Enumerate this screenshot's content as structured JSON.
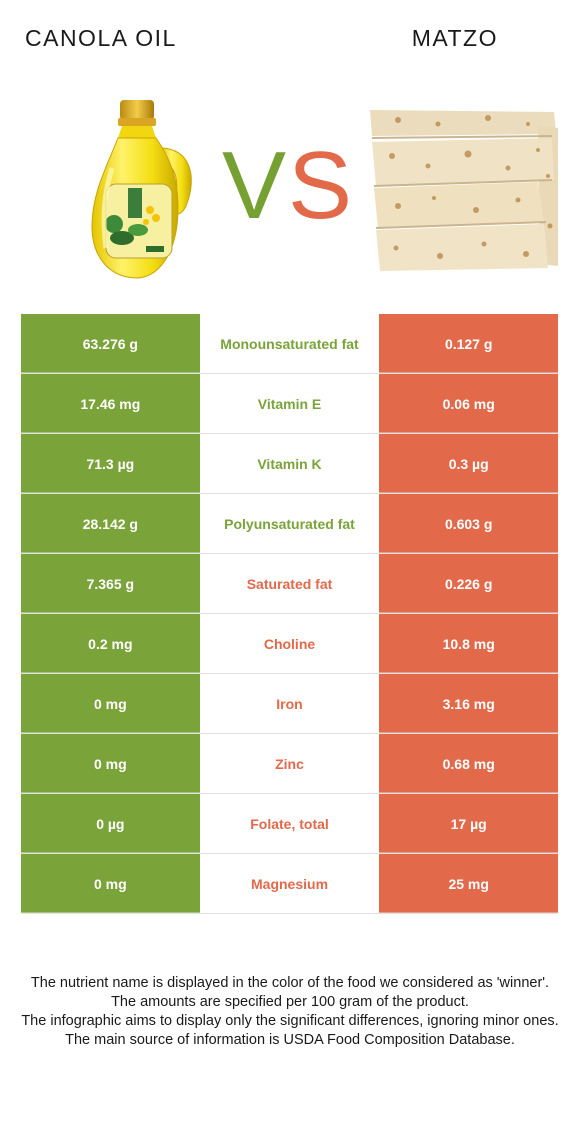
{
  "header": {
    "left_food": "CANOLA OIL",
    "right_food": "MATZO",
    "vs_v": "V",
    "vs_s": "S"
  },
  "colors": {
    "left_accent": "#7aa33a",
    "right_accent": "#e2694a"
  },
  "images": {
    "left": "canola-oil-bottle-image",
    "right": "matzo-crackers-image"
  },
  "rows": [
    {
      "left": "63.276 g",
      "nutrient": "Monounsaturated fat",
      "right": "0.127 g",
      "winner": "left"
    },
    {
      "left": "17.46 mg",
      "nutrient": "Vitamin E",
      "right": "0.06 mg",
      "winner": "left"
    },
    {
      "left": "71.3 µg",
      "nutrient": "Vitamin K",
      "right": "0.3 µg",
      "winner": "left"
    },
    {
      "left": "28.142 g",
      "nutrient": "Polyunsaturated fat",
      "right": "0.603 g",
      "winner": "left"
    },
    {
      "left": "7.365 g",
      "nutrient": "Saturated fat",
      "right": "0.226 g",
      "winner": "right"
    },
    {
      "left": "0.2 mg",
      "nutrient": "Choline",
      "right": "10.8 mg",
      "winner": "right"
    },
    {
      "left": "0 mg",
      "nutrient": "Iron",
      "right": "3.16 mg",
      "winner": "right"
    },
    {
      "left": "0 mg",
      "nutrient": "Zinc",
      "right": "0.68 mg",
      "winner": "right"
    },
    {
      "left": "0 µg",
      "nutrient": "Folate, total",
      "right": "17 µg",
      "winner": "right"
    },
    {
      "left": "0 mg",
      "nutrient": "Magnesium",
      "right": "25 mg",
      "winner": "right"
    }
  ],
  "footer": {
    "line1": "The nutrient name is displayed in the color of the food we considered as 'winner'.",
    "line2": "The amounts are specified per 100 gram of the product.",
    "line3": "The infographic aims to display only the significant differences, ignoring minor ones.",
    "line4": "The main source of information is USDA Food Composition Database."
  }
}
